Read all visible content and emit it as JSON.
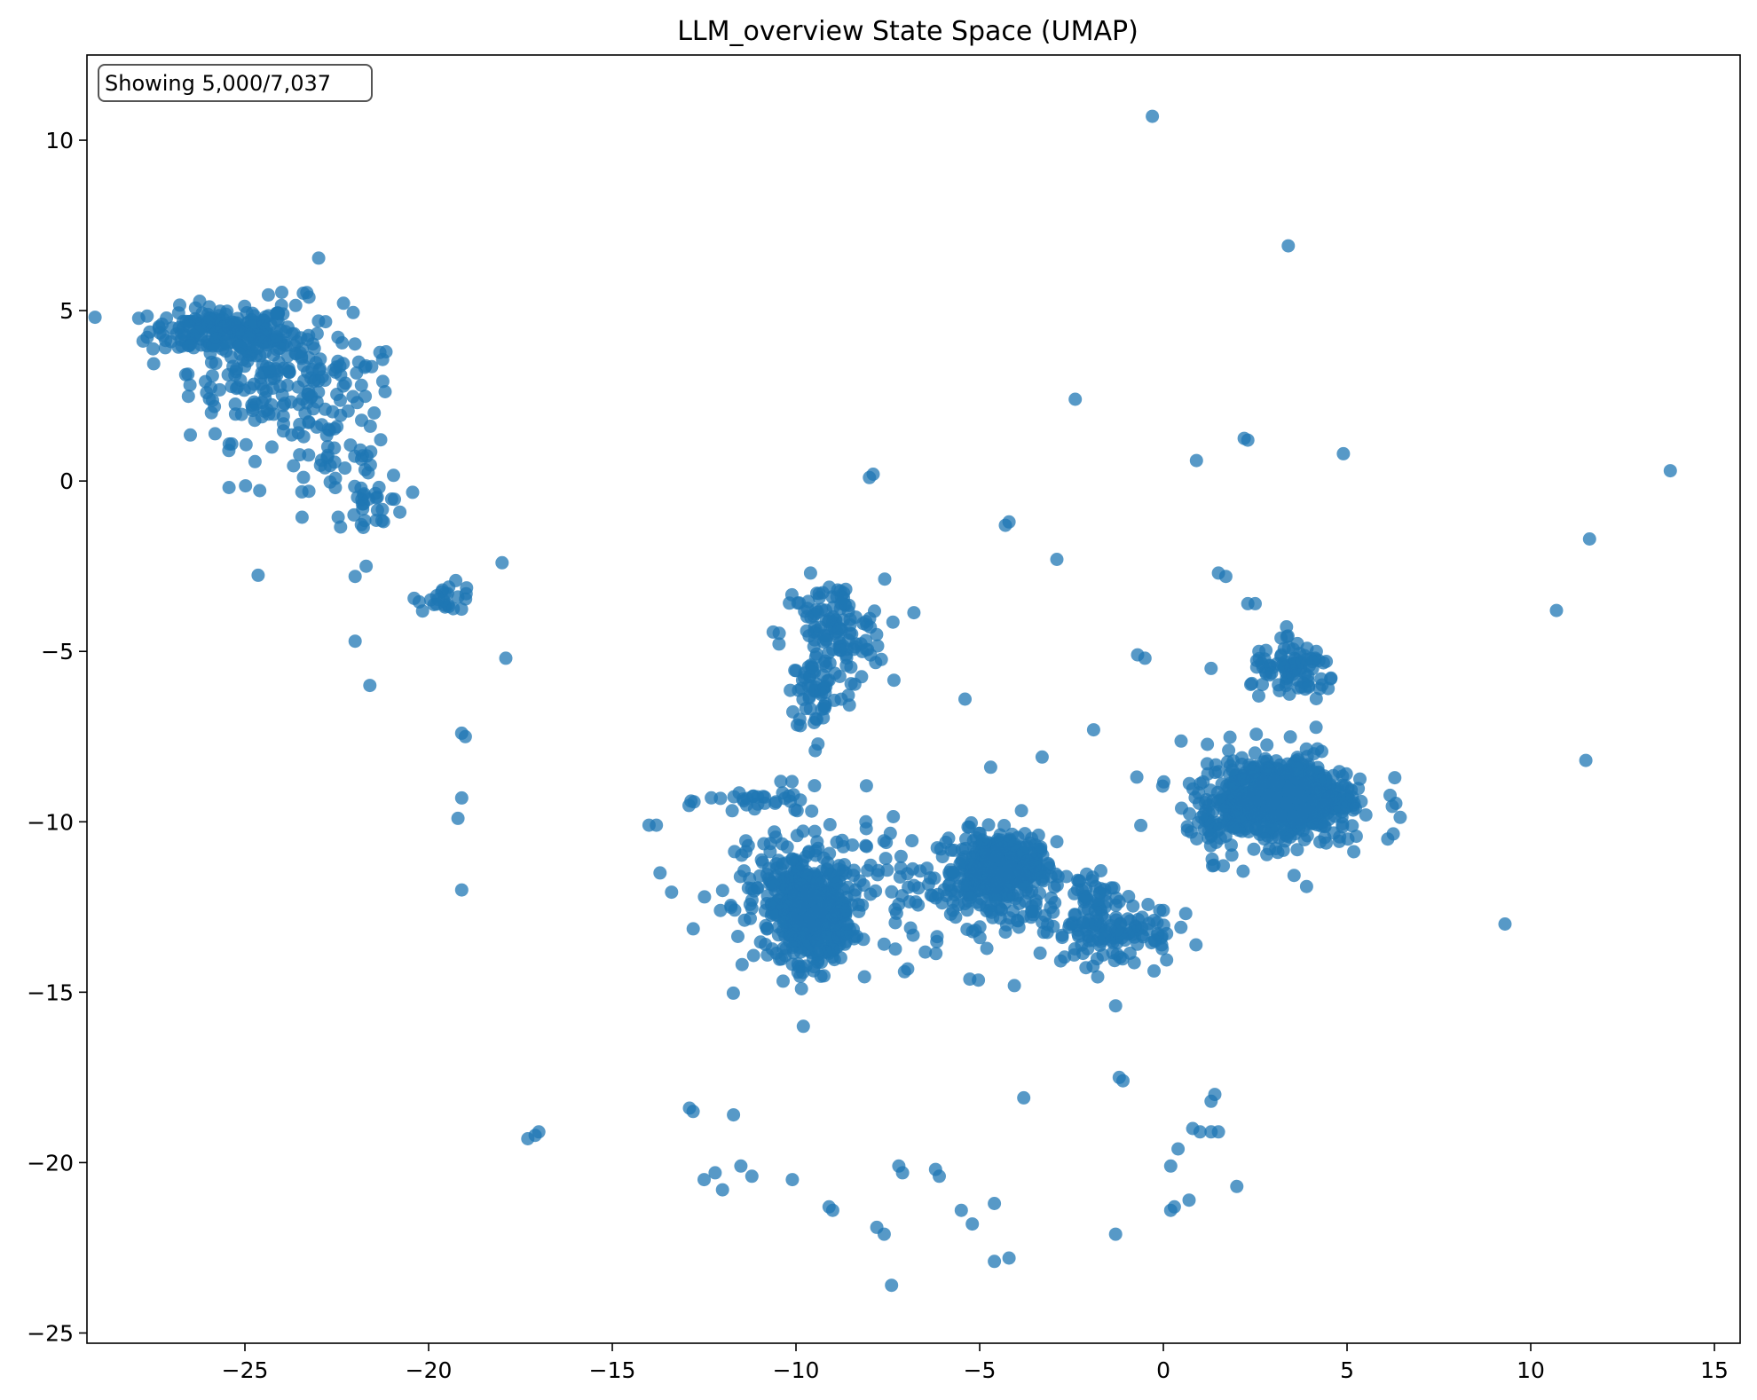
{
  "chart_data": {
    "type": "scatter",
    "title": "LLM_overview State Space (UMAP)",
    "annotation": "Showing 5,000/7,037",
    "xlabel": "",
    "ylabel": "",
    "xlim": [
      -29.3,
      15.7
    ],
    "ylim": [
      -25.3,
      12.5
    ],
    "x_ticks": [
      -25,
      -20,
      -15,
      -10,
      -5,
      0,
      5,
      10,
      15
    ],
    "x_tick_labels": [
      "−25",
      "−20",
      "−15",
      "−10",
      "−5",
      "0",
      "5",
      "10",
      "15"
    ],
    "y_ticks": [
      10,
      5,
      0,
      -5,
      -10,
      -15,
      -20,
      -25
    ],
    "y_tick_labels": [
      "10",
      "5",
      "0",
      "−5",
      "−10",
      "−15",
      "−20",
      "−25"
    ],
    "grid": false,
    "marker_color": "#1f77b4",
    "marker_alpha": 0.75,
    "clusters": [
      {
        "cx": -25.6,
        "cy": 4.4,
        "sx": 1.0,
        "sy": 0.35,
        "n": 180
      },
      {
        "cx": -24.3,
        "cy": 3.2,
        "sx": 1.1,
        "sy": 1.0,
        "n": 180
      },
      {
        "cx": -22.6,
        "cy": 1.3,
        "sx": 0.9,
        "sy": 1.6,
        "n": 90
      },
      {
        "cx": -21.4,
        "cy": -0.6,
        "sx": 0.4,
        "sy": 0.4,
        "n": 25
      },
      {
        "cx": -19.5,
        "cy": -3.4,
        "sx": 0.4,
        "sy": 0.2,
        "n": 25
      },
      {
        "cx": -9.0,
        "cy": -4.5,
        "sx": 0.7,
        "sy": 0.8,
        "n": 130
      },
      {
        "cx": -9.4,
        "cy": -6.2,
        "sx": 0.4,
        "sy": 0.6,
        "n": 50
      },
      {
        "cx": -9.6,
        "cy": -12.7,
        "sx": 0.55,
        "sy": 0.7,
        "n": 450
      },
      {
        "cx": -9.8,
        "cy": -11.8,
        "sx": 1.5,
        "sy": 1.1,
        "n": 140
      },
      {
        "cx": -10.8,
        "cy": -9.4,
        "sx": 0.8,
        "sy": 0.2,
        "n": 30
      },
      {
        "cx": -4.5,
        "cy": -11.4,
        "sx": 0.55,
        "sy": 0.5,
        "n": 350
      },
      {
        "cx": -4.5,
        "cy": -12.0,
        "sx": 1.5,
        "sy": 1.1,
        "n": 160
      },
      {
        "cx": -1.3,
        "cy": -13.2,
        "sx": 0.8,
        "sy": 0.5,
        "n": 110
      },
      {
        "cx": -2.0,
        "cy": -12.2,
        "sx": 0.5,
        "sy": 0.5,
        "n": 30
      },
      {
        "cx": 3.2,
        "cy": -9.3,
        "sx": 0.7,
        "sy": 0.5,
        "n": 600
      },
      {
        "cx": 3.1,
        "cy": -9.4,
        "sx": 1.3,
        "sy": 0.8,
        "n": 250
      },
      {
        "cx": 3.6,
        "cy": -5.6,
        "sx": 0.6,
        "sy": 0.4,
        "n": 90
      },
      {
        "cx": 1.5,
        "cy": -10.1,
        "sx": 0.5,
        "sy": 0.4,
        "n": 30
      }
    ],
    "points": [
      [
        -0.3,
        10.7
      ],
      [
        3.4,
        6.9
      ],
      [
        -2.4,
        2.4
      ],
      [
        2.3,
        1.2
      ],
      [
        2.2,
        1.25
      ],
      [
        0.9,
        0.6
      ],
      [
        4.9,
        0.8
      ],
      [
        -7.9,
        0.2
      ],
      [
        -8.0,
        0.1
      ],
      [
        13.8,
        0.3
      ],
      [
        -4.2,
        -1.2
      ],
      [
        -4.3,
        -1.3
      ],
      [
        11.6,
        -1.7
      ],
      [
        -2.9,
        -2.3
      ],
      [
        1.5,
        -2.7
      ],
      [
        1.7,
        -2.8
      ],
      [
        2.3,
        -3.6
      ],
      [
        2.5,
        -3.6
      ],
      [
        10.7,
        -3.8
      ],
      [
        -18.0,
        -2.4
      ],
      [
        -17.9,
        -5.2
      ],
      [
        -0.7,
        -5.1
      ],
      [
        -0.5,
        -5.2
      ],
      [
        1.3,
        -5.5
      ],
      [
        2.6,
        -5.0
      ],
      [
        -5.4,
        -6.4
      ],
      [
        -1.9,
        -7.3
      ],
      [
        -3.3,
        -8.1
      ],
      [
        -4.7,
        -8.4
      ],
      [
        11.5,
        -8.2
      ],
      [
        -22.0,
        -2.8
      ],
      [
        -21.7,
        -2.5
      ],
      [
        -22.0,
        -4.7
      ],
      [
        -21.6,
        -6.0
      ],
      [
        -19.0,
        -7.5
      ],
      [
        -19.1,
        -7.4
      ],
      [
        -19.1,
        -9.3
      ],
      [
        -19.2,
        -9.9
      ],
      [
        -19.1,
        -12.0
      ],
      [
        -13.8,
        -10.1
      ],
      [
        -14.0,
        -10.1
      ],
      [
        -13.7,
        -11.5
      ],
      [
        9.3,
        -13.0
      ],
      [
        -9.8,
        -16.0
      ],
      [
        -1.3,
        -15.4
      ],
      [
        -17.3,
        -19.3
      ],
      [
        -17.1,
        -19.2
      ],
      [
        -17.0,
        -19.1
      ],
      [
        -12.9,
        -18.4
      ],
      [
        -12.8,
        -18.5
      ],
      [
        -11.7,
        -18.6
      ],
      [
        -12.5,
        -20.5
      ],
      [
        -12.2,
        -20.3
      ],
      [
        -12.0,
        -20.8
      ],
      [
        -11.5,
        -20.1
      ],
      [
        -11.2,
        -20.4
      ],
      [
        -10.1,
        -20.5
      ],
      [
        -9.1,
        -21.3
      ],
      [
        -9.0,
        -21.4
      ],
      [
        -7.2,
        -20.1
      ],
      [
        -7.1,
        -20.3
      ],
      [
        -6.2,
        -20.2
      ],
      [
        -6.1,
        -20.4
      ],
      [
        -5.5,
        -21.4
      ],
      [
        -5.2,
        -21.8
      ],
      [
        -4.6,
        -21.2
      ],
      [
        -7.8,
        -21.9
      ],
      [
        -7.6,
        -22.1
      ],
      [
        -7.4,
        -23.6
      ],
      [
        -4.6,
        -22.9
      ],
      [
        -4.2,
        -22.8
      ],
      [
        -3.8,
        -18.1
      ],
      [
        -1.3,
        -22.1
      ],
      [
        -1.2,
        -17.5
      ],
      [
        -1.1,
        -17.6
      ],
      [
        0.2,
        -21.4
      ],
      [
        0.3,
        -21.3
      ],
      [
        0.7,
        -21.1
      ],
      [
        2.0,
        -20.7
      ],
      [
        0.2,
        -20.1
      ],
      [
        0.4,
        -19.6
      ],
      [
        0.8,
        -19.0
      ],
      [
        1.0,
        -19.1
      ],
      [
        1.3,
        -19.1
      ],
      [
        1.5,
        -19.1
      ],
      [
        1.4,
        -18.0
      ],
      [
        1.3,
        -18.2
      ],
      [
        -0.1,
        -12.6
      ],
      [
        0.0,
        -12.6
      ]
    ]
  }
}
